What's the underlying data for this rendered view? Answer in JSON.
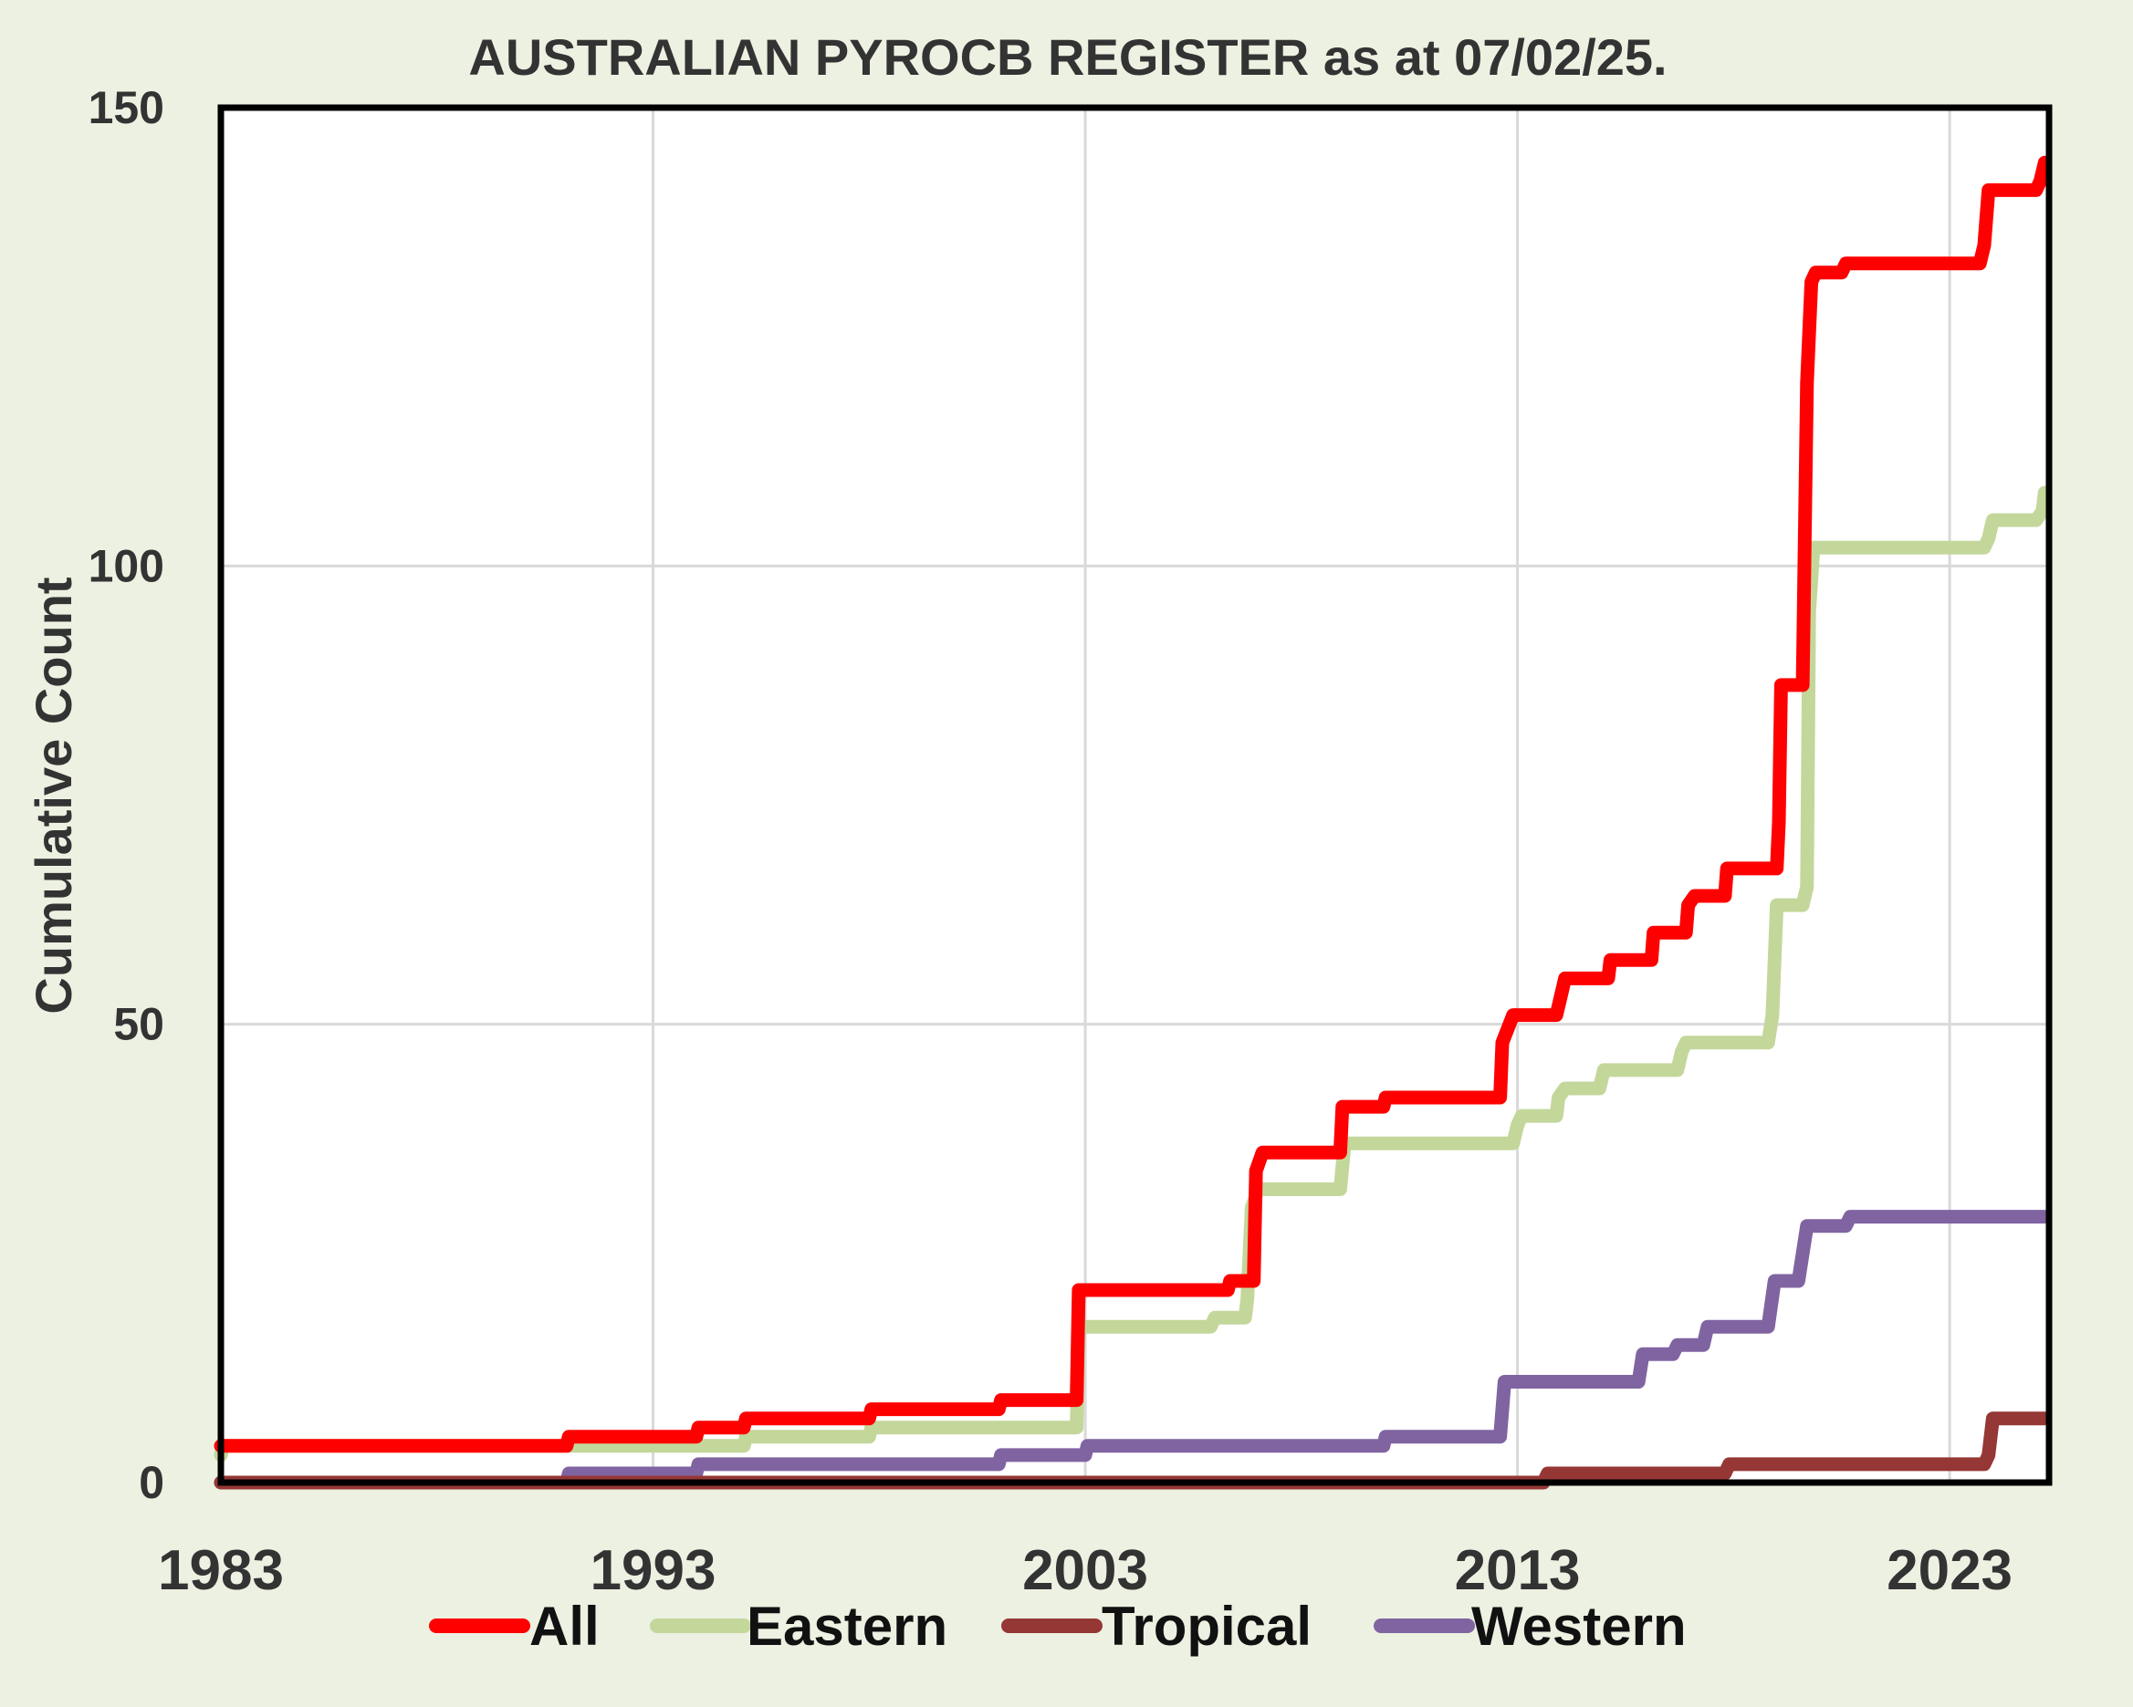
{
  "chart_data": {
    "type": "line",
    "title": "AUSTRALIAN PYROCB REGISTER as at 07/02/25.",
    "ylabel": "Cumulative Count",
    "xlabel": "",
    "xlim": [
      1983,
      2025.3
    ],
    "ylim": [
      0,
      150
    ],
    "x_ticks": [
      "1983",
      "1993",
      "2003",
      "2013",
      "2023"
    ],
    "x_tick_values": [
      1983,
      1993,
      2003,
      2013,
      2023
    ],
    "y_ticks": [
      "0",
      "50",
      "100",
      "150"
    ],
    "y_tick_values": [
      0,
      50,
      100,
      150
    ],
    "grid": true,
    "legend_position": "bottom",
    "series": [
      {
        "name": "All",
        "color": "#ff0000",
        "points": [
          [
            1983.0,
            4
          ],
          [
            1991.0,
            4
          ],
          [
            1991.05,
            5
          ],
          [
            1994.0,
            5
          ],
          [
            1994.05,
            6
          ],
          [
            1995.1,
            6
          ],
          [
            1995.15,
            7
          ],
          [
            1998.0,
            7
          ],
          [
            1998.05,
            8
          ],
          [
            2001.0,
            8
          ],
          [
            2001.05,
            9
          ],
          [
            2002.8,
            9
          ],
          [
            2002.85,
            21
          ],
          [
            2006.3,
            21
          ],
          [
            2006.35,
            22
          ],
          [
            2006.9,
            22
          ],
          [
            2006.95,
            34
          ],
          [
            2007.1,
            36
          ],
          [
            2008.9,
            36
          ],
          [
            2008.95,
            41
          ],
          [
            2009.9,
            41
          ],
          [
            2009.95,
            42
          ],
          [
            2012.6,
            42
          ],
          [
            2012.65,
            48
          ],
          [
            2012.9,
            51
          ],
          [
            2013.9,
            51
          ],
          [
            2013.95,
            52
          ],
          [
            2014.1,
            55
          ],
          [
            2015.1,
            55
          ],
          [
            2015.15,
            57
          ],
          [
            2016.1,
            57
          ],
          [
            2016.15,
            60
          ],
          [
            2016.9,
            60
          ],
          [
            2016.95,
            63
          ],
          [
            2017.1,
            64
          ],
          [
            2017.8,
            64
          ],
          [
            2017.85,
            67
          ],
          [
            2019.0,
            67
          ],
          [
            2019.05,
            72
          ],
          [
            2019.1,
            87
          ],
          [
            2019.6,
            87
          ],
          [
            2019.7,
            120
          ],
          [
            2019.8,
            131
          ],
          [
            2019.9,
            132
          ],
          [
            2020.5,
            132
          ],
          [
            2020.6,
            133
          ],
          [
            2023.7,
            133
          ],
          [
            2023.8,
            135
          ],
          [
            2023.9,
            141
          ],
          [
            2025.0,
            141
          ],
          [
            2025.1,
            142
          ],
          [
            2025.2,
            144
          ]
        ]
      },
      {
        "name": "Eastern",
        "color": "#c4d79b",
        "points": [
          [
            1983.0,
            3
          ],
          [
            1983.05,
            4
          ],
          [
            1995.1,
            4
          ],
          [
            1995.15,
            5
          ],
          [
            1998.0,
            5
          ],
          [
            1998.05,
            6
          ],
          [
            2002.8,
            6
          ],
          [
            2002.85,
            17
          ],
          [
            2005.9,
            17
          ],
          [
            2006.0,
            18
          ],
          [
            2006.7,
            18
          ],
          [
            2006.75,
            20
          ],
          [
            2006.85,
            30
          ],
          [
            2007.0,
            32
          ],
          [
            2008.9,
            32
          ],
          [
            2009.0,
            37
          ],
          [
            2012.9,
            37
          ],
          [
            2013.0,
            39
          ],
          [
            2013.1,
            40
          ],
          [
            2013.9,
            40
          ],
          [
            2013.95,
            42
          ],
          [
            2014.1,
            43
          ],
          [
            2014.9,
            43
          ],
          [
            2015.0,
            45
          ],
          [
            2016.7,
            45
          ],
          [
            2016.8,
            47
          ],
          [
            2016.9,
            48
          ],
          [
            2018.8,
            48
          ],
          [
            2018.9,
            51
          ],
          [
            2019.0,
            63
          ],
          [
            2019.6,
            63
          ],
          [
            2019.7,
            65
          ],
          [
            2019.75,
            95
          ],
          [
            2019.85,
            102
          ],
          [
            2023.8,
            102
          ],
          [
            2023.9,
            103
          ],
          [
            2024.0,
            105
          ],
          [
            2025.0,
            105
          ],
          [
            2025.15,
            106
          ],
          [
            2025.2,
            108
          ]
        ]
      },
      {
        "name": "Tropical",
        "color": "#953735",
        "points": [
          [
            1983.0,
            0
          ],
          [
            2013.6,
            0
          ],
          [
            2013.7,
            1
          ],
          [
            2017.8,
            1
          ],
          [
            2017.9,
            2
          ],
          [
            2023.8,
            2
          ],
          [
            2023.9,
            3
          ],
          [
            2024.0,
            7
          ],
          [
            2025.2,
            7
          ]
        ]
      },
      {
        "name": "Western",
        "color": "#8064a2",
        "points": [
          [
            1983.0,
            0
          ],
          [
            1991.0,
            0
          ],
          [
            1991.05,
            1
          ],
          [
            1994.0,
            1
          ],
          [
            1994.05,
            2
          ],
          [
            2001.0,
            2
          ],
          [
            2001.05,
            3
          ],
          [
            2003.0,
            3
          ],
          [
            2003.05,
            4
          ],
          [
            2009.9,
            4
          ],
          [
            2009.95,
            5
          ],
          [
            2012.6,
            5
          ],
          [
            2012.7,
            11
          ],
          [
            2015.8,
            11
          ],
          [
            2015.9,
            14
          ],
          [
            2016.6,
            14
          ],
          [
            2016.7,
            15
          ],
          [
            2017.3,
            15
          ],
          [
            2017.4,
            17
          ],
          [
            2018.8,
            17
          ],
          [
            2018.95,
            22
          ],
          [
            2019.5,
            22
          ],
          [
            2019.7,
            28
          ],
          [
            2020.6,
            28
          ],
          [
            2020.7,
            29
          ],
          [
            2025.2,
            29
          ]
        ]
      }
    ]
  }
}
